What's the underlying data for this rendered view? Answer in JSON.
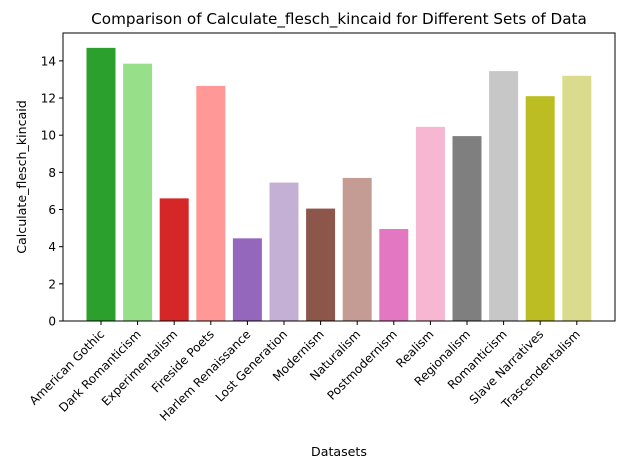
{
  "chart_data": {
    "type": "bar",
    "title": "Comparison of Calculate_flesch_kincaid for Different Sets of Data",
    "xlabel": "Datasets",
    "ylabel": "Calculate_flesch_kincaid",
    "ylim": [
      0,
      15.5
    ],
    "yticks": [
      0,
      2,
      4,
      6,
      8,
      10,
      12,
      14
    ],
    "grid": false,
    "legend": "none",
    "categories": [
      "American Gothic",
      "Dark Romanticism",
      "Experimentalism",
      "Fireside Poets",
      "Harlem Renaissance",
      "Lost Generation",
      "Modernism",
      "Naturalism",
      "Postmodernism",
      "Realism",
      "Regionalism",
      "Romanticism",
      "Slave Narratives",
      "Trascendentalism"
    ],
    "values": [
      14.7,
      13.85,
      6.6,
      12.65,
      4.45,
      7.45,
      6.05,
      7.7,
      4.95,
      10.45,
      9.95,
      13.45,
      12.1,
      13.2
    ],
    "colors": [
      "#2ca02c",
      "#98df8a",
      "#d62728",
      "#ff9896",
      "#9467bd",
      "#c5b0d5",
      "#8c564b",
      "#c49c94",
      "#e377c2",
      "#f7b6d2",
      "#7f7f7f",
      "#c7c7c7",
      "#bcbd22",
      "#dbdb8d"
    ]
  }
}
